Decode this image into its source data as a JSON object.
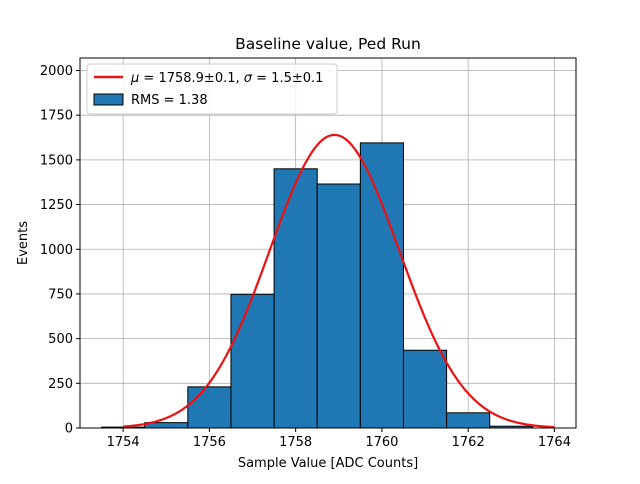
{
  "chart_data": {
    "type": "bar",
    "title": "Baseline value, Ped Run",
    "xlabel": "Sample Value [ADC Counts]",
    "ylabel": "Events",
    "xlim": [
      1753,
      1764.5
    ],
    "ylim": [
      0,
      2070
    ],
    "xticks": [
      1754,
      1756,
      1758,
      1760,
      1762,
      1764
    ],
    "yticks": [
      0,
      250,
      500,
      750,
      1000,
      1250,
      1500,
      1750,
      2000
    ],
    "grid": true,
    "legend_position": "top-left",
    "histogram": {
      "name": "RMS = 1.38",
      "bin_edges": [
        1753.5,
        1754.5,
        1755.5,
        1756.5,
        1757.5,
        1758.5,
        1759.5,
        1760.5,
        1761.5,
        1762.5,
        1763.5
      ],
      "values": [
        5,
        30,
        230,
        748,
        1450,
        1365,
        1595,
        435,
        85,
        10
      ],
      "color": "#1f77b4",
      "edge_color": "#000000"
    },
    "fit": {
      "name": "$\\mu = 1758.9 \\pm 0.1$, $\\sigma = 1.5 \\pm 0.1$",
      "type": "gaussian",
      "mu": 1758.9,
      "sigma": 1.5,
      "amplitude": 1640,
      "x_range": [
        1754,
        1764
      ],
      "color": "#ee1111"
    },
    "legend": [
      {
        "label_parts": [
          "μ",
          " = 1758.9±0.1, ",
          "σ",
          " = 1.5±0.1"
        ],
        "kind": "line",
        "color": "#ee1111"
      },
      {
        "label": "RMS = 1.38",
        "kind": "patch",
        "color": "#1f77b4"
      }
    ]
  }
}
